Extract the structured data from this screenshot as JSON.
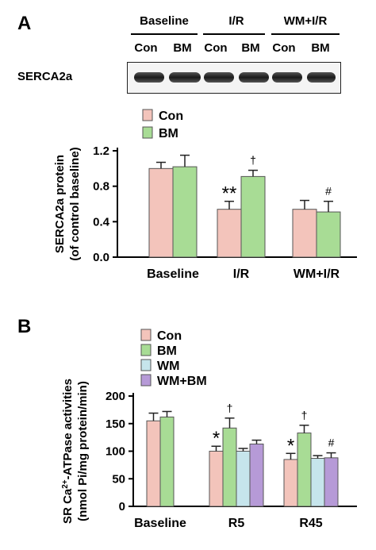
{
  "panel_a": {
    "letter": "A",
    "blot": {
      "protein_label": "SERCA2a",
      "groups": [
        "Baseline",
        "I/R",
        "WM+I/R"
      ],
      "lanes": [
        "Con",
        "BM",
        "Con",
        "BM",
        "Con",
        "BM"
      ]
    }
  },
  "panel_b": {
    "letter": "B"
  },
  "colors": {
    "Con": "#f3c4bb",
    "BM": "#a8dc95",
    "WM": "#c6e5ec",
    "WM+BM": "#b69ad7"
  },
  "chart_data": [
    {
      "type": "bar",
      "categories": [
        "Baseline",
        "I/R",
        "WM+I/R"
      ],
      "series": [
        {
          "name": "Con",
          "values": [
            1.0,
            0.54,
            0.54
          ],
          "errors": [
            0.07,
            0.09,
            0.1
          ]
        },
        {
          "name": "BM",
          "values": [
            1.02,
            0.91,
            0.51
          ],
          "errors": [
            0.13,
            0.07,
            0.12
          ]
        }
      ],
      "annotations": [
        {
          "category": "I/R",
          "series": "Con",
          "text": "**"
        },
        {
          "category": "I/R",
          "series": "BM",
          "text": "†"
        },
        {
          "category": "WM+I/R",
          "series": "BM",
          "text": "#"
        }
      ],
      "ylabel": "SERCA2a protein (of control baseline)",
      "ylim": [
        0,
        1.2
      ],
      "yticks": [
        "0.0",
        "0.4",
        "0.8",
        "1.2"
      ],
      "legend": "top-left",
      "grid": false
    },
    {
      "type": "bar",
      "categories": [
        "Baseline",
        "R5",
        "R45"
      ],
      "series": [
        {
          "name": "Con",
          "values": [
            155,
            100,
            85
          ],
          "errors": [
            14,
            9,
            11
          ]
        },
        {
          "name": "BM",
          "values": [
            162,
            142,
            133
          ],
          "errors": [
            10,
            18,
            14
          ]
        },
        {
          "name": "WM",
          "values": [
            null,
            100,
            87
          ],
          "errors": [
            null,
            5,
            5
          ]
        },
        {
          "name": "WM+BM",
          "values": [
            null,
            113,
            88
          ],
          "errors": [
            null,
            7,
            9
          ]
        }
      ],
      "annotations": [
        {
          "category": "R5",
          "series": "Con",
          "text": "*"
        },
        {
          "category": "R5",
          "series": "BM",
          "text": "†"
        },
        {
          "category": "R45",
          "series": "Con",
          "text": "*"
        },
        {
          "category": "R45",
          "series": "BM",
          "text": "†"
        },
        {
          "category": "R45",
          "series": "WM+BM",
          "text": "#"
        }
      ],
      "ylabel": "SR Ca2+-ATPase activities (nmol Pi/mg protein/min)",
      "ylim": [
        0,
        200
      ],
      "yticks": [
        "0",
        "50",
        "100",
        "150",
        "200"
      ],
      "legend": "top-left",
      "grid": false
    }
  ]
}
